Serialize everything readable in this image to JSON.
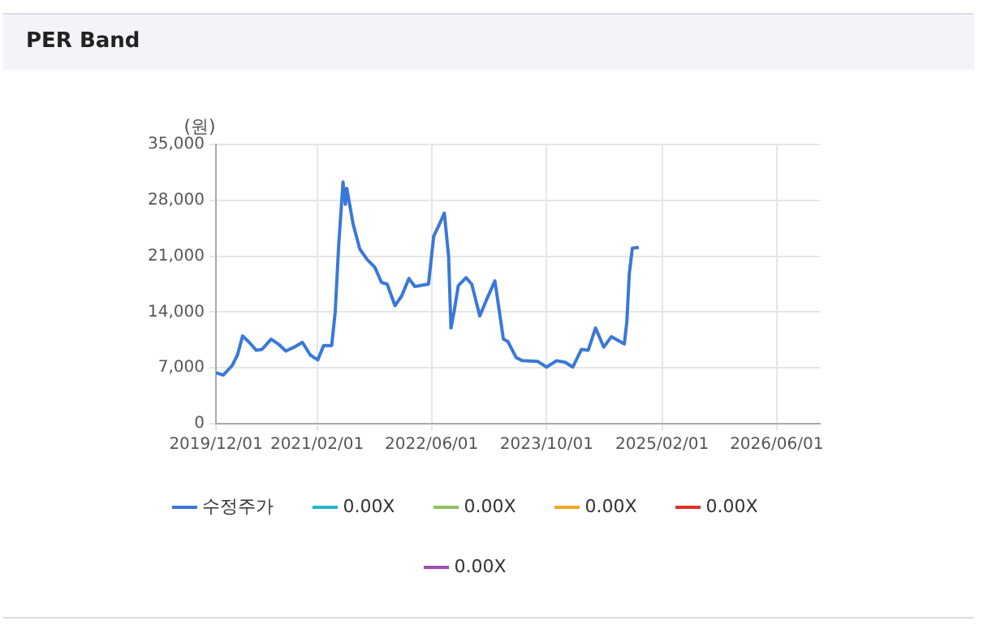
{
  "chart_data": {
    "type": "line",
    "title": "PER Band",
    "ylabel": "(원)",
    "xlim": [
      "2019-12-01",
      "2026-12-01"
    ],
    "xticks": [
      {
        "value": "2019-12-01",
        "label": "2019/12/01"
      },
      {
        "value": "2021-02-01",
        "label": "2021/02/01"
      },
      {
        "value": "2022-06-01",
        "label": "2022/06/01"
      },
      {
        "value": "2023-10-01",
        "label": "2023/10/01"
      },
      {
        "value": "2025-02-01",
        "label": "2025/02/01"
      },
      {
        "value": "2026-06-01",
        "label": "2026/06/01"
      }
    ],
    "ylim": [
      0,
      35000
    ],
    "yticks": [
      0,
      {
        "value": 7000,
        "label": "7,000"
      },
      {
        "value": 14000,
        "label": "14,000"
      },
      {
        "value": 21000,
        "label": "21,000"
      },
      {
        "value": 28000,
        "label": "28,000"
      },
      {
        "value": 35000,
        "label": "35,000"
      }
    ],
    "grid": true,
    "legend": "bottom",
    "marker": "none",
    "line_style": "solid",
    "series": [
      {
        "name": "수정주가",
        "color": "#3a78d8",
        "x": [
          "2019-12-01",
          "2020-01-01",
          "2020-02-08",
          "2020-03-01",
          "2020-03-23",
          "2020-04-20",
          "2020-05-20",
          "2020-06-12",
          "2020-07-22",
          "2020-08-25",
          "2020-09-22",
          "2020-10-27",
          "2020-12-01",
          "2021-01-04",
          "2021-02-04",
          "2021-03-01",
          "2021-04-04",
          "2021-04-19",
          "2021-05-04",
          "2021-05-22",
          "2021-06-01",
          "2021-06-07",
          "2021-07-04",
          "2021-08-01",
          "2021-09-01",
          "2021-10-04",
          "2021-11-01",
          "2021-11-25",
          "2021-12-28",
          "2022-01-25",
          "2022-02-25",
          "2022-03-22",
          "2022-05-19",
          "2022-06-10",
          "2022-07-04",
          "2022-07-25",
          "2022-08-12",
          "2022-08-22",
          "2022-09-04",
          "2022-09-22",
          "2022-10-25",
          "2022-11-18",
          "2022-12-22",
          "2023-01-19",
          "2023-02-24",
          "2023-04-01",
          "2023-04-20",
          "2023-05-25",
          "2023-06-20",
          "2023-08-25",
          "2023-10-01",
          "2023-11-12",
          "2023-12-18",
          "2024-01-20",
          "2024-02-25",
          "2024-03-25",
          "2024-04-25",
          "2024-05-30",
          "2024-07-01",
          "2024-08-25",
          "2024-09-05",
          "2024-09-15",
          "2024-09-28",
          "2024-10-25"
        ],
        "values": [
          6400,
          6100,
          7300,
          8600,
          11000,
          10200,
          9200,
          9300,
          10600,
          9900,
          9100,
          9600,
          10200,
          8600,
          8000,
          9800,
          9800,
          14000,
          22500,
          30300,
          27500,
          29500,
          25000,
          21900,
          20600,
          19600,
          17700,
          17500,
          14800,
          16000,
          18200,
          17200,
          17500,
          23500,
          25000,
          26400,
          21000,
          12000,
          14000,
          17300,
          18300,
          17500,
          13500,
          15500,
          17900,
          10600,
          10300,
          8300,
          7900,
          7800,
          7100,
          7900,
          7700,
          7100,
          9300,
          9200,
          12000,
          9600,
          10900,
          10000,
          12900,
          18800,
          22000,
          22100
        ]
      },
      {
        "name": "0.00X",
        "color": "#26b5c8"
      },
      {
        "name": "0.00X",
        "color": "#8dc25c"
      },
      {
        "name": "0.00X",
        "color": "#f5a623"
      },
      {
        "name": "0.00X",
        "color": "#e03030"
      },
      {
        "name": "0.00X",
        "color": "#9b4fb0"
      }
    ]
  }
}
